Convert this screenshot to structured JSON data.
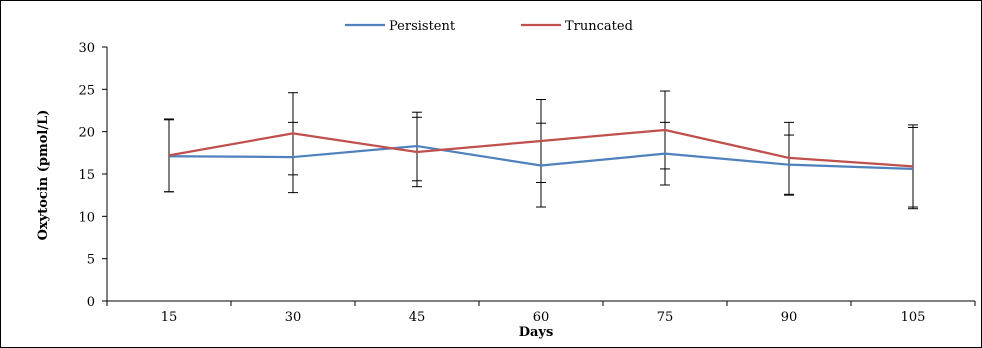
{
  "chart_data": {
    "type": "line",
    "title": "",
    "xlabel": "Days",
    "ylabel": "Oxytocin (pmol/L)",
    "categories": [
      "15",
      "30",
      "45",
      "60",
      "75",
      "90",
      "105"
    ],
    "ylim": [
      0,
      30
    ],
    "yticks": [
      0,
      5,
      10,
      15,
      20,
      25,
      30
    ],
    "grid": false,
    "legend_position": "top-center",
    "series": [
      {
        "name": "Persistent",
        "color": "#4F81BD",
        "values": [
          17.1,
          17.0,
          18.3,
          16.0,
          17.4,
          16.1,
          15.6
        ],
        "error_low": [
          12.9,
          14.9,
          14.2,
          11.1,
          15.6,
          12.6,
          10.9
        ],
        "error_high": [
          21.4,
          21.1,
          21.7,
          21.0,
          21.1,
          19.6,
          20.5
        ]
      },
      {
        "name": "Truncated",
        "color": "#C0504D",
        "values": [
          17.2,
          19.8,
          17.6,
          18.9,
          20.2,
          16.9,
          15.9
        ],
        "error_low": [
          12.9,
          12.8,
          13.5,
          14.0,
          13.7,
          12.5,
          11.1
        ],
        "error_high": [
          21.5,
          24.6,
          22.3,
          23.8,
          24.8,
          21.1,
          20.8
        ]
      }
    ]
  }
}
